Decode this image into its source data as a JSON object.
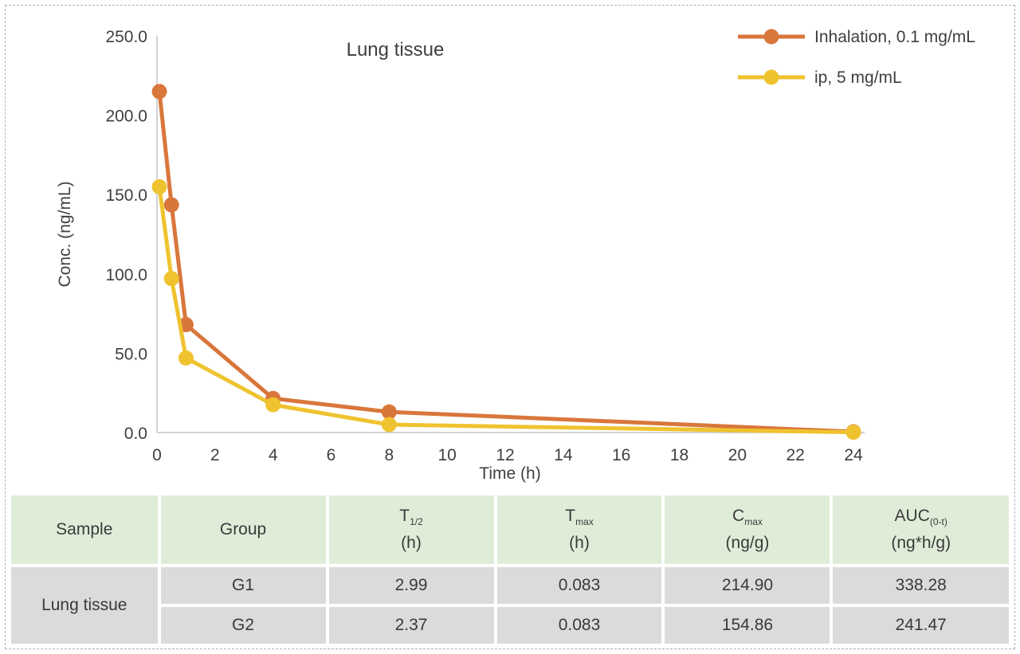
{
  "chart_data": {
    "type": "line",
    "title": "Lung tissue",
    "xlabel": "Time (h)",
    "ylabel": "Conc. (ng/mL)",
    "xlim": [
      0,
      24
    ],
    "ylim": [
      0,
      250
    ],
    "x_ticks": [
      0,
      2,
      4,
      6,
      8,
      10,
      12,
      14,
      16,
      18,
      20,
      22,
      24
    ],
    "y_ticks": [
      0,
      50,
      100,
      150,
      200,
      250
    ],
    "y_tick_decimals": 1,
    "grid": false,
    "legend_position": "top-right",
    "x": [
      0.083,
      0.5,
      1,
      4,
      8,
      24
    ],
    "series": [
      {
        "name": "Inhalation, 0.1 mg/mL",
        "color": "#d9763b",
        "values": [
          214.9,
          143.5,
          68.0,
          21.5,
          13.0,
          0.5
        ]
      },
      {
        "name": "ip, 5 mg/mL",
        "color": "#efc32f",
        "values": [
          154.86,
          97.0,
          47.0,
          17.5,
          5.0,
          0.2
        ]
      }
    ]
  },
  "table": {
    "header_bg": "#dfedd8",
    "body_bg": "#dbdbdb",
    "columns": [
      {
        "key": "sample",
        "label": "Sample"
      },
      {
        "key": "group",
        "label": "Group"
      },
      {
        "key": "t_half",
        "base": "T",
        "sub": "1/2",
        "unit": "(h)"
      },
      {
        "key": "t_max",
        "base": "T",
        "sub": "max",
        "unit": "(h)"
      },
      {
        "key": "c_max",
        "base": "C",
        "sub": "max",
        "unit": "(ng/g)"
      },
      {
        "key": "auc",
        "base": "AUC",
        "sub": "(0-t)",
        "unit": "(ng*h/g)"
      }
    ],
    "sample_label": "Lung tissue",
    "rows": [
      {
        "group": "G1",
        "t_half": "2.99",
        "t_max": "0.083",
        "c_max": "214.90",
        "auc": "338.28"
      },
      {
        "group": "G2",
        "t_half": "2.37",
        "t_max": "0.083",
        "c_max": "154.86",
        "auc": "241.47"
      }
    ]
  }
}
